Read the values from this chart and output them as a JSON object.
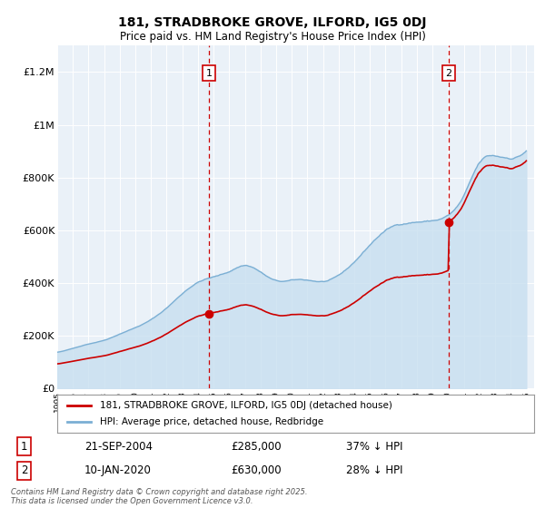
{
  "title": "181, STRADBROKE GROVE, ILFORD, IG5 0DJ",
  "subtitle": "Price paid vs. HM Land Registry's House Price Index (HPI)",
  "hpi_color": "#7bafd4",
  "hpi_fill_color": "#c8dff0",
  "price_paid_color": "#cc0000",
  "vline_color": "#cc0000",
  "legend_line1": "181, STRADBROKE GROVE, ILFORD, IG5 0DJ (detached house)",
  "legend_line2": "HPI: Average price, detached house, Redbridge",
  "table_row1": [
    "1",
    "21-SEP-2004",
    "£285,000",
    "37% ↓ HPI"
  ],
  "table_row2": [
    "2",
    "10-JAN-2020",
    "£630,000",
    "28% ↓ HPI"
  ],
  "footnote": "Contains HM Land Registry data © Crown copyright and database right 2025.\nThis data is licensed under the Open Government Licence v3.0.",
  "sale1_year": 2004.72,
  "sale1_value": 285000,
  "sale2_year": 2020.03,
  "sale2_value": 630000,
  "ylim": [
    0,
    1300000
  ],
  "xlim": [
    1995,
    2025.5
  ],
  "yticks": [
    0,
    200000,
    400000,
    600000,
    800000,
    1000000,
    1200000
  ],
  "ytick_labels": [
    "£0",
    "£200K",
    "£400K",
    "£600K",
    "£800K",
    "£1M",
    "£1.2M"
  ],
  "background_color": "#ffffff",
  "plot_bg_color": "#eaf1f8"
}
